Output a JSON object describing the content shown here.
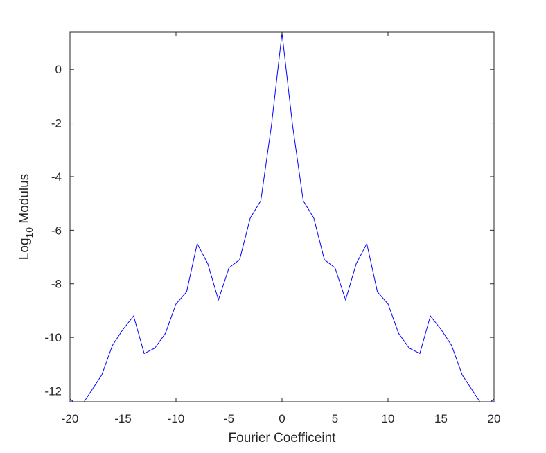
{
  "chart_data": {
    "type": "line",
    "title": "",
    "xlabel": "Fourier Coefficeint",
    "ylabel": {
      "prefix": "Log",
      "subscript": "10",
      "suffix": " Modulus"
    },
    "xlim": [
      -20,
      20
    ],
    "ylim": [
      -12.4,
      1.4
    ],
    "xticks": [
      -20,
      -15,
      -10,
      -5,
      0,
      5,
      10,
      15,
      20
    ],
    "xtick_labels": [
      "-20",
      "-15",
      "-10",
      "-5",
      "0",
      "5",
      "10",
      "15",
      "20"
    ],
    "yticks": [
      -12,
      -10,
      -8,
      -6,
      -4,
      -2,
      0
    ],
    "ytick_labels": [
      "-12",
      "-10",
      "-8",
      "-6",
      "-4",
      "-2",
      "0"
    ],
    "grid": false,
    "line_color": "#0000ff",
    "series": [
      {
        "x": [
          -20,
          -19,
          -18,
          -17,
          -16,
          -15,
          -14,
          -13,
          -12,
          -11,
          -10,
          -9,
          -8,
          -7,
          -6,
          -5,
          -4,
          -3,
          -2,
          -1,
          0,
          1,
          2,
          3,
          4,
          5,
          6,
          7,
          8,
          9,
          10,
          11,
          12,
          13,
          14,
          15,
          16,
          17,
          18,
          19,
          20
        ],
        "y": [
          -12.3,
          -12.6,
          -12.0,
          -11.4,
          -10.3,
          -9.7,
          -9.2,
          -10.6,
          -10.4,
          -9.85,
          -8.75,
          -8.3,
          -6.5,
          -7.25,
          -8.6,
          -7.4,
          -7.1,
          -5.55,
          -4.9,
          -2.1,
          1.35,
          -2.1,
          -4.9,
          -5.55,
          -7.1,
          -7.4,
          -8.6,
          -7.25,
          -6.5,
          -8.3,
          -8.75,
          -9.85,
          -10.4,
          -10.6,
          -9.2,
          -9.7,
          -10.3,
          -11.4,
          -12.0,
          -12.6,
          -12.3
        ]
      }
    ]
  }
}
